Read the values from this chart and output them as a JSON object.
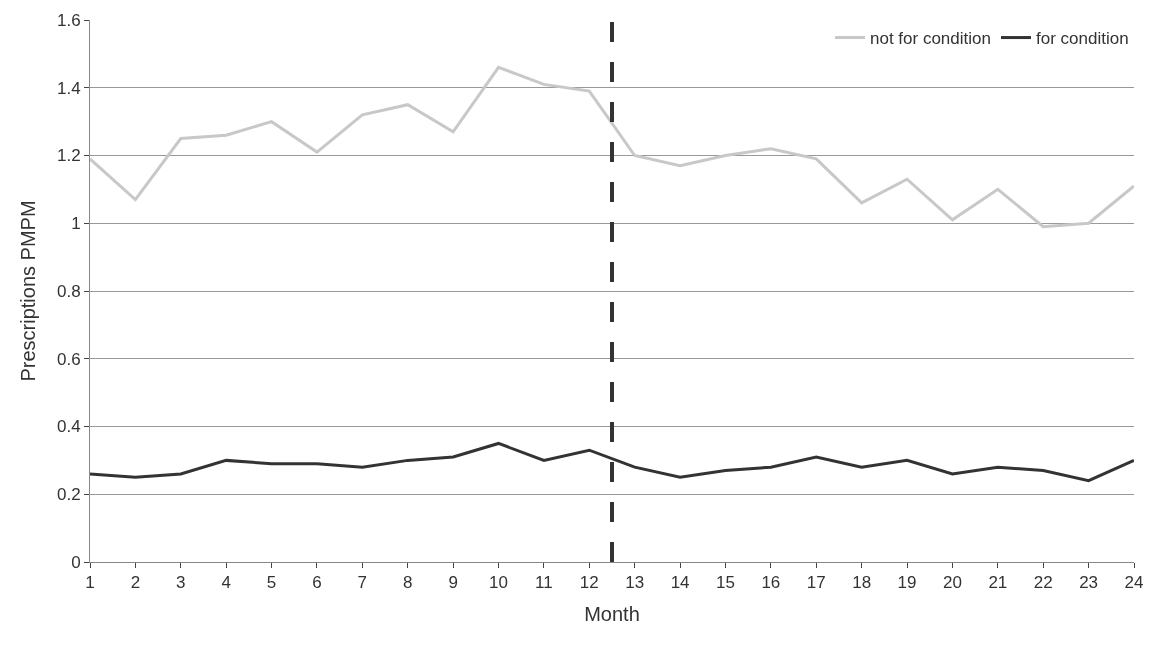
{
  "chart_data": {
    "type": "line",
    "xlabel": "Month",
    "ylabel": "Prescriptions PMPM",
    "x": [
      1,
      2,
      3,
      4,
      5,
      6,
      7,
      8,
      9,
      10,
      11,
      12,
      13,
      14,
      15,
      16,
      17,
      18,
      19,
      20,
      21,
      22,
      23,
      24
    ],
    "series": [
      {
        "name": "not for condition",
        "color": "#c8c8c8",
        "values": [
          1.19,
          1.07,
          1.25,
          1.26,
          1.3,
          1.21,
          1.32,
          1.35,
          1.27,
          1.46,
          1.41,
          1.39,
          1.2,
          1.17,
          1.2,
          1.22,
          1.19,
          1.06,
          1.13,
          1.01,
          1.1,
          0.99,
          1.0,
          1.11
        ]
      },
      {
        "name": "for condition",
        "color": "#333333",
        "values": [
          0.26,
          0.25,
          0.26,
          0.3,
          0.29,
          0.29,
          0.28,
          0.3,
          0.31,
          0.35,
          0.3,
          0.33,
          0.28,
          0.25,
          0.27,
          0.28,
          0.31,
          0.28,
          0.3,
          0.26,
          0.28,
          0.27,
          0.24,
          0.3
        ]
      }
    ],
    "xlim": [
      1,
      24
    ],
    "xticks": [
      1,
      2,
      3,
      4,
      5,
      6,
      7,
      8,
      9,
      10,
      11,
      12,
      13,
      14,
      15,
      16,
      17,
      18,
      19,
      20,
      21,
      22,
      23,
      24
    ],
    "ylim": [
      0,
      1.6
    ],
    "yticks": [
      0,
      0.2,
      0.4,
      0.6,
      0.8,
      1,
      1.2,
      1.4,
      1.6
    ],
    "ref_lines": [
      {
        "axis": "x",
        "value": 12.5,
        "color": "#333333",
        "line_style": "dashed"
      }
    ],
    "grid": "y",
    "legend": "top right",
    "marker": "none",
    "line_style": "solid"
  }
}
